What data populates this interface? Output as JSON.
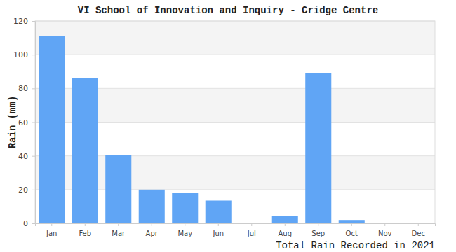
{
  "chart_data": {
    "type": "bar",
    "title": "VI School of Innovation and Inquiry - Cridge Centre",
    "y_label": "Rain (mm)",
    "x_label": "Total Rain Recorded in 2021",
    "categories": [
      "Jan",
      "Feb",
      "Mar",
      "Apr",
      "May",
      "Jun",
      "Jul",
      "Aug",
      "Sep",
      "Oct",
      "Nov",
      "Dec"
    ],
    "values": [
      111,
      86,
      40.5,
      20,
      18,
      13.5,
      0,
      4.5,
      89,
      2,
      0,
      0
    ],
    "color": "#60a5f5",
    "ylim": [
      0,
      120
    ],
    "yticks": [
      0,
      20,
      40,
      60,
      80,
      100,
      120
    ],
    "grid": true
  }
}
